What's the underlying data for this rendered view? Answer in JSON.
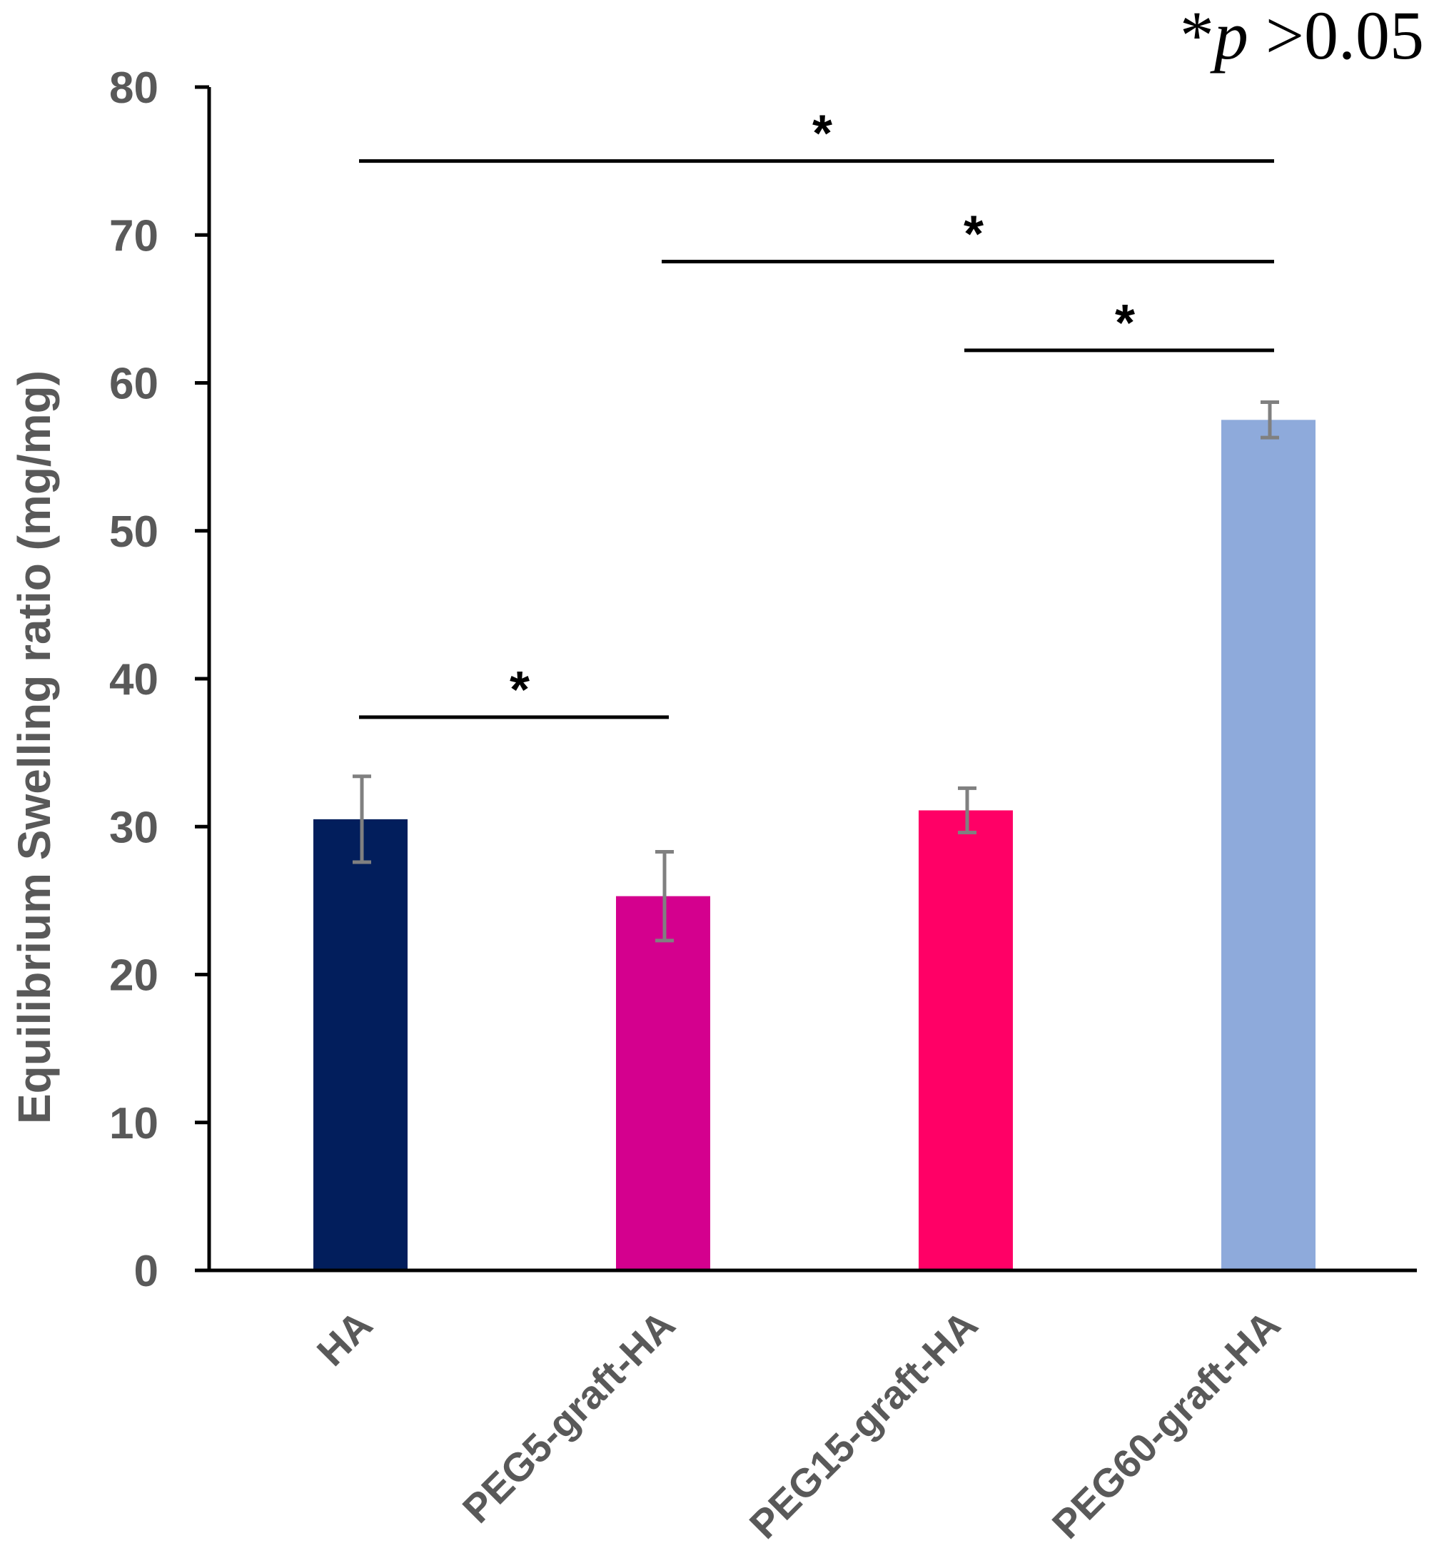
{
  "chart_data": {
    "type": "bar",
    "title": "",
    "xlabel": "",
    "ylabel": "Equilibrium Swelling ratio (mg/mg)",
    "ylim": [
      0,
      80
    ],
    "yticks": [
      0,
      10,
      20,
      30,
      40,
      50,
      60,
      70,
      80
    ],
    "categories": [
      "HA",
      "PEG5-graft-HA",
      "PEG15-graft-HA",
      "PEG60-graft-HA"
    ],
    "values": [
      30.5,
      25.3,
      31.1,
      57.5
    ],
    "errors": [
      2.9,
      3.0,
      1.5,
      1.2
    ],
    "colors": [
      "#021E5C",
      "#D4008E",
      "#FF0066",
      "#8EAADB"
    ],
    "error_color": "#808080",
    "significance": {
      "symbol": "*",
      "note_star": "*",
      "note_p": "p",
      "note_rest": " >0.05",
      "brackets": [
        {
          "from": 0,
          "to": 3,
          "level": 75
        },
        {
          "from": 1,
          "to": 3,
          "level": 68.2
        },
        {
          "from": 2,
          "to": 3,
          "level": 62.2
        },
        {
          "from": 0,
          "to": 1,
          "level": 37.4
        }
      ]
    }
  }
}
